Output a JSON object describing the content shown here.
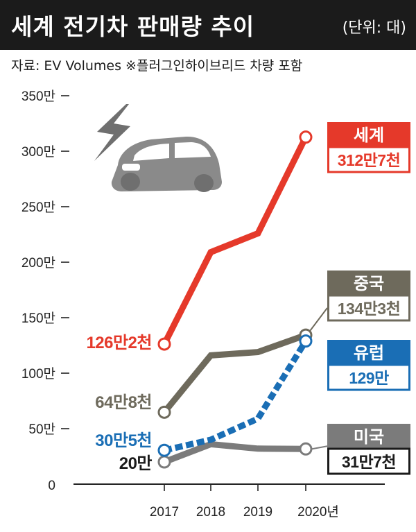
{
  "header": {
    "title": "세계 전기차 판매량 추이",
    "unit": "(단위: 대)"
  },
  "source": "자료: EV Volumes  ※플러그인하이브리드 차량 포함",
  "colors": {
    "world": "#e5392a",
    "china": "#6e6a5c",
    "europe": "#1a6eb5",
    "usa": "#7b7b7b",
    "axis": "#222222",
    "header_bg": "#1b1b1b"
  },
  "decor": {
    "lightning_icon": "lightning-bolt-icon",
    "car_icon": "electric-car-icon"
  },
  "chart_data": {
    "type": "line",
    "categories": [
      "2017",
      "2018",
      "2019",
      "2020년"
    ],
    "ylim": [
      0,
      350
    ],
    "yticks": [
      {
        "value": 0,
        "label": "0"
      },
      {
        "value": 50,
        "label": "50만"
      },
      {
        "value": 100,
        "label": "100만"
      },
      {
        "value": 150,
        "label": "150만"
      },
      {
        "value": 200,
        "label": "200만"
      },
      {
        "value": 250,
        "label": "250만"
      },
      {
        "value": 300,
        "label": "300만"
      },
      {
        "value": 350,
        "label": "350만"
      }
    ],
    "grid": false,
    "series": [
      {
        "key": "world",
        "name": "세계",
        "values": [
          126.2,
          209,
          226,
          312.7
        ],
        "start_label": "126만2천",
        "end_label": "312만7천",
        "dashed": false
      },
      {
        "key": "china",
        "name": "중국",
        "values": [
          64.8,
          116,
          119,
          134.3
        ],
        "start_label": "64만8천",
        "end_label": "134만3천",
        "dashed": false
      },
      {
        "key": "europe",
        "name": "유럽",
        "values": [
          30.5,
          40,
          59,
          129
        ],
        "start_label": "30만5천",
        "end_label": "129만",
        "dashed": true
      },
      {
        "key": "usa",
        "name": "미국",
        "values": [
          20,
          36,
          32,
          31.7
        ],
        "start_label": "20만",
        "end_label": "31만7천",
        "dashed": false
      }
    ]
  }
}
